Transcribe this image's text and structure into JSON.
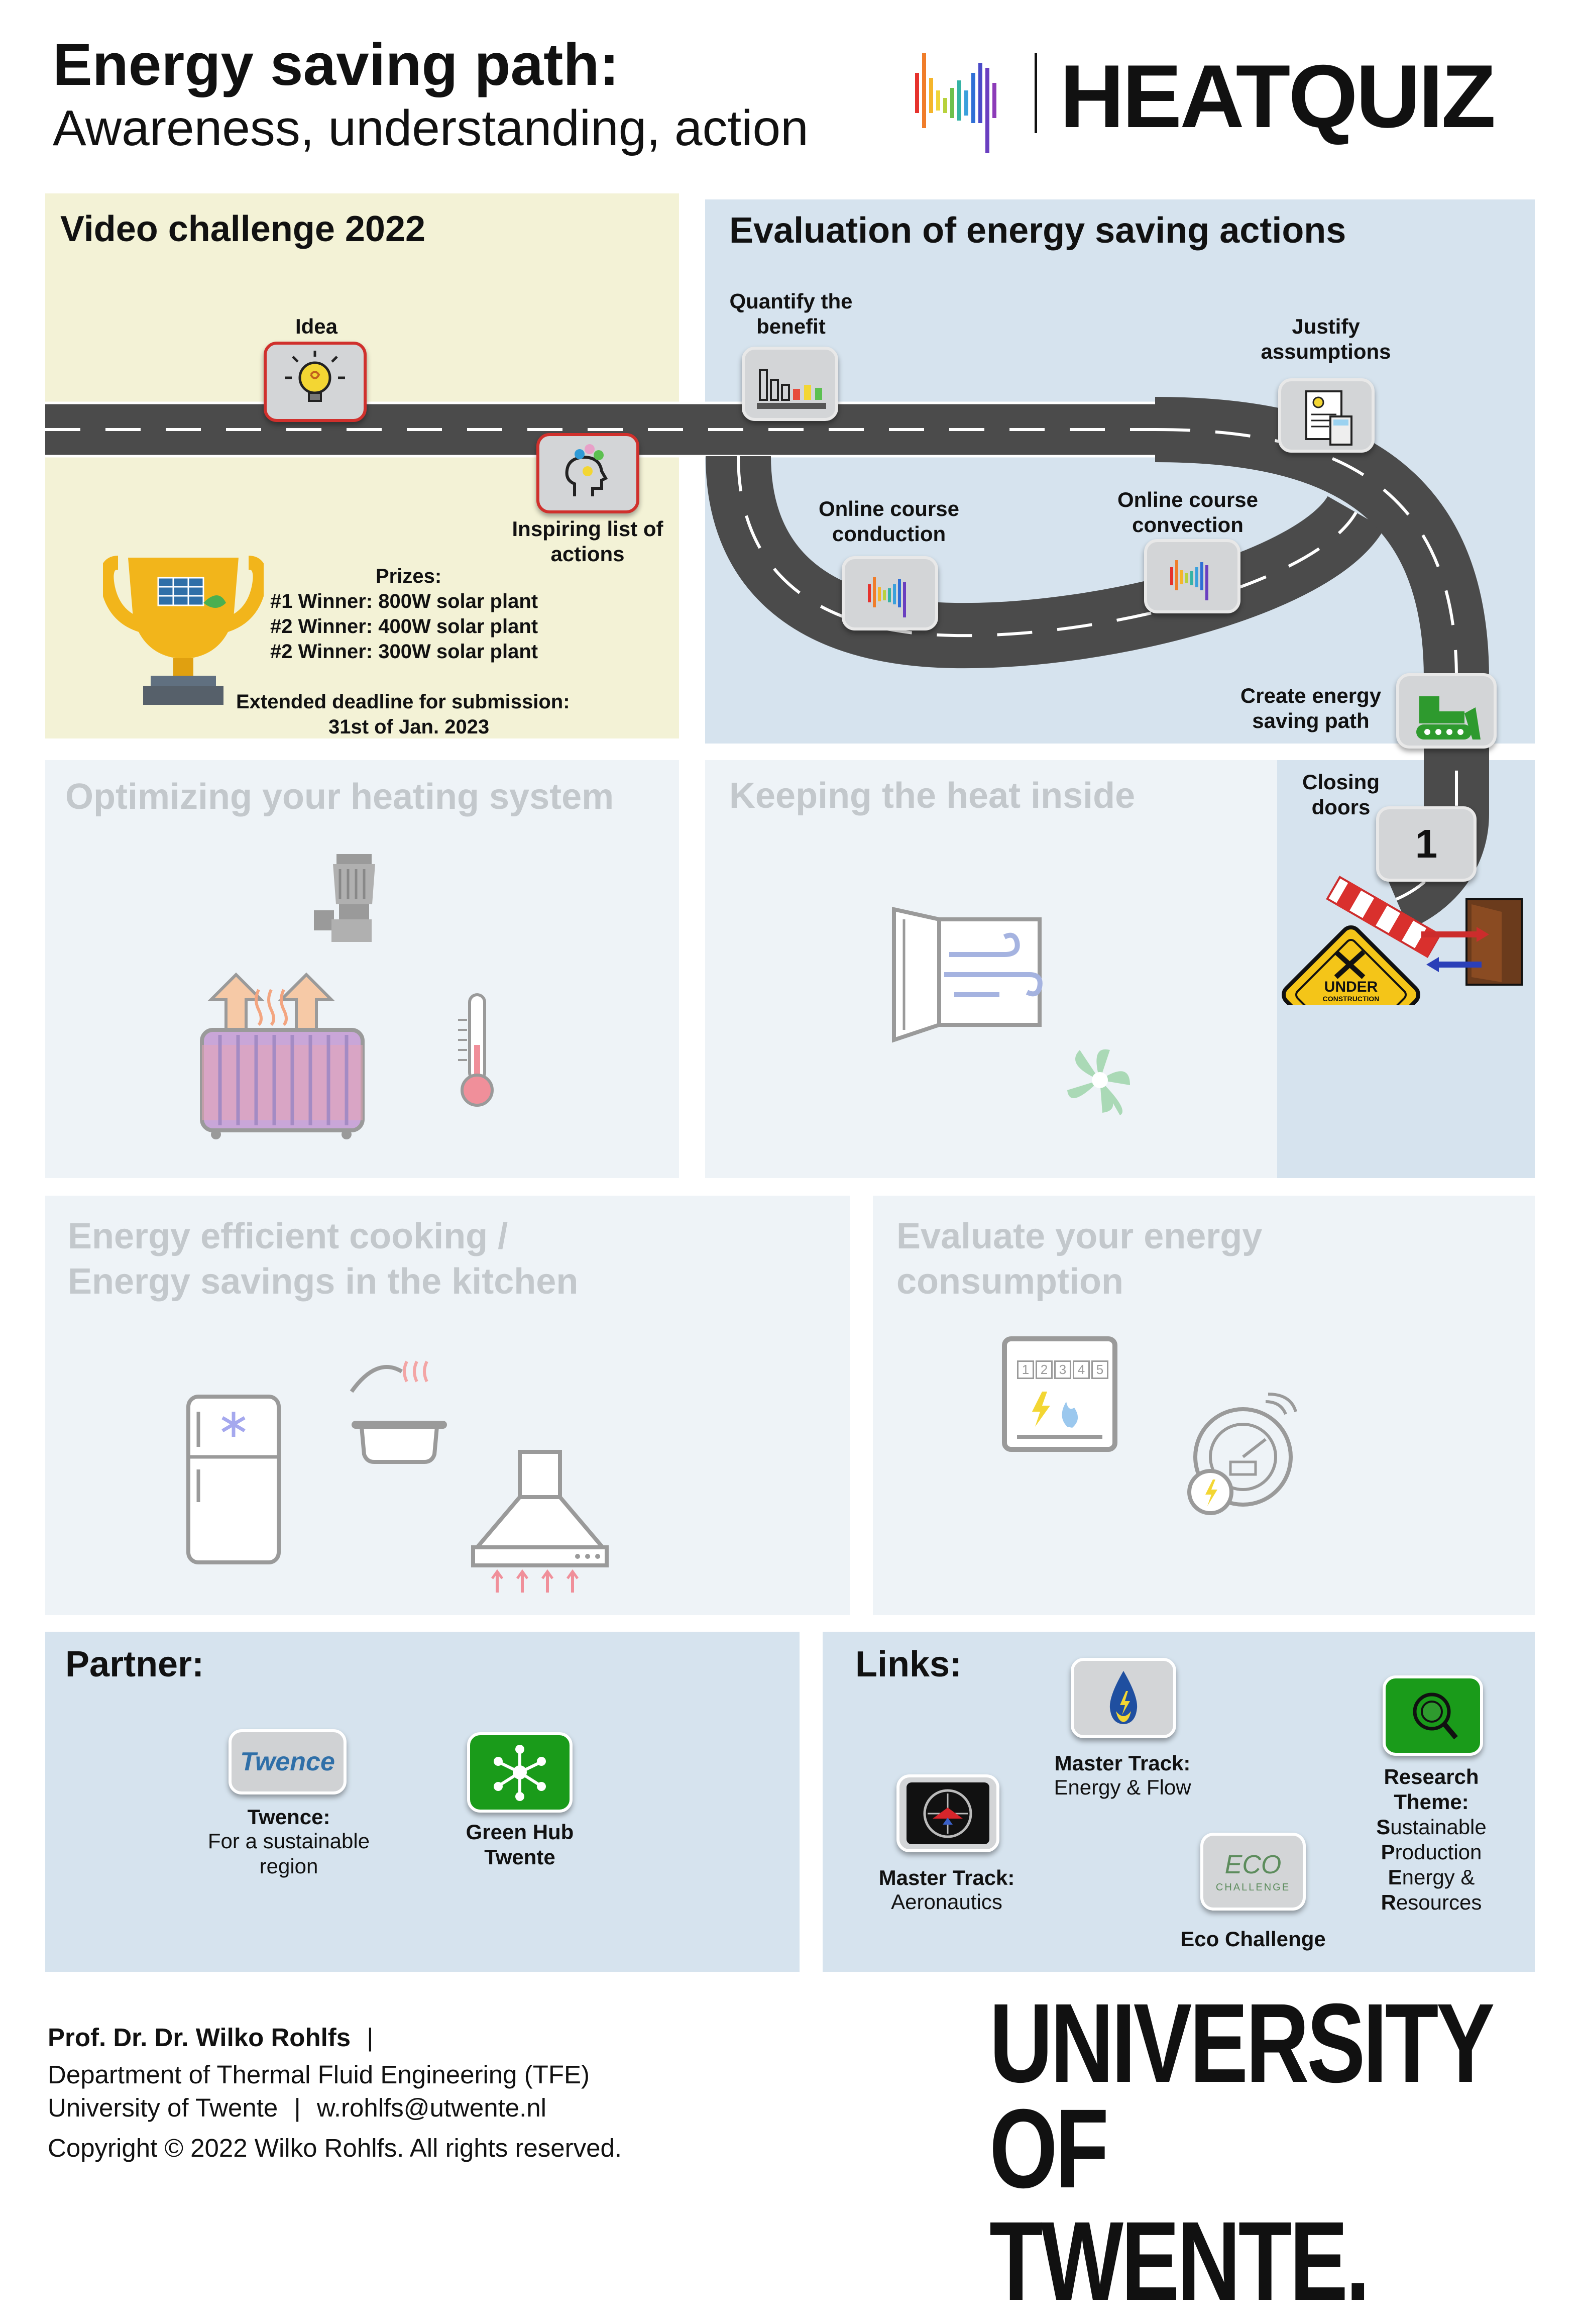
{
  "header": {
    "title": "Energy saving path:",
    "subtitle": "Awareness, understanding, action",
    "brand": "HEATQUIZ"
  },
  "colors": {
    "yellow_panel": "#f3f2d6",
    "blue_panel": "#d6e3ee",
    "light_panel": "#eef3f7",
    "road": "#595959",
    "red_border": "#d0302c",
    "green_tile": "#2e9a2e"
  },
  "video_challenge": {
    "title": "Video challenge 2022",
    "idea_label": "Idea",
    "inspiring_label": "Inspiring list of actions",
    "prizes_heading": "Prizes:",
    "prizes": [
      "#1 Winner: 800W solar plant",
      "#2 Winner: 400W solar plant",
      "#2 Winner: 300W solar plant"
    ],
    "deadline_line1": "Extended deadline for submission:",
    "deadline_line2": "31st of Jan. 2023"
  },
  "evaluation": {
    "title": "Evaluation of energy saving actions",
    "quantify": "Quantify the benefit",
    "justify": "Justify assumptions",
    "conduction": "Online course conduction",
    "convection": "Online course convection",
    "create_path": "Create energy saving path",
    "closing_doors": "Closing doors",
    "closing_doors_number": "1",
    "under_construction": "UNDER",
    "under_construction_small": "CONSTRUCTION"
  },
  "topics": {
    "heating": "Optimizing your heating system",
    "heat_inside": "Keeping the heat inside",
    "cooking_line1": "Energy efficient cooking /",
    "cooking_line2": "Energy savings in the kitchen",
    "consumption_line1": "Evaluate your energy",
    "consumption_line2": "consumption",
    "meter_digits": [
      "1",
      "2",
      "3",
      "4",
      "5"
    ]
  },
  "partner": {
    "title": "Partner:",
    "twence_logo": "Twence",
    "twence_name": "Twence:",
    "twence_desc_line1": "For a sustainable",
    "twence_desc_line2": "region",
    "greenhub_line1": "Green Hub",
    "greenhub_line2": "Twente"
  },
  "links": {
    "title": "Links:",
    "energy_flow_bold": "Master Track:",
    "energy_flow": "Energy & Flow",
    "aero_bold": "Master Track:",
    "aero": "Aeronautics",
    "eco": "Eco Challenge",
    "eco_logo": "ECO",
    "eco_logo_sub": "CHALLENGE",
    "research_line1": "Research",
    "research_line2": "Theme:",
    "research_items": [
      {
        "first": "S",
        "rest": "ustainable"
      },
      {
        "first": "P",
        "rest": "roduction"
      },
      {
        "first": "E",
        "rest": "nergy &"
      },
      {
        "first": "R",
        "rest": "esources"
      }
    ]
  },
  "footer": {
    "name": "Prof. Dr. Dr. Wilko Rohlfs",
    "sep": "|",
    "dept": "Department of Thermal Fluid Engineering (TFE)",
    "uni": "University of Twente",
    "email": "w.rohlfs@utwente.nl",
    "copyright": "Copyright © 2022 Wilko Rohlfs. All rights reserved.",
    "ut_line1": "UNIVERSITY",
    "ut_line2": "OF TWENTE."
  }
}
